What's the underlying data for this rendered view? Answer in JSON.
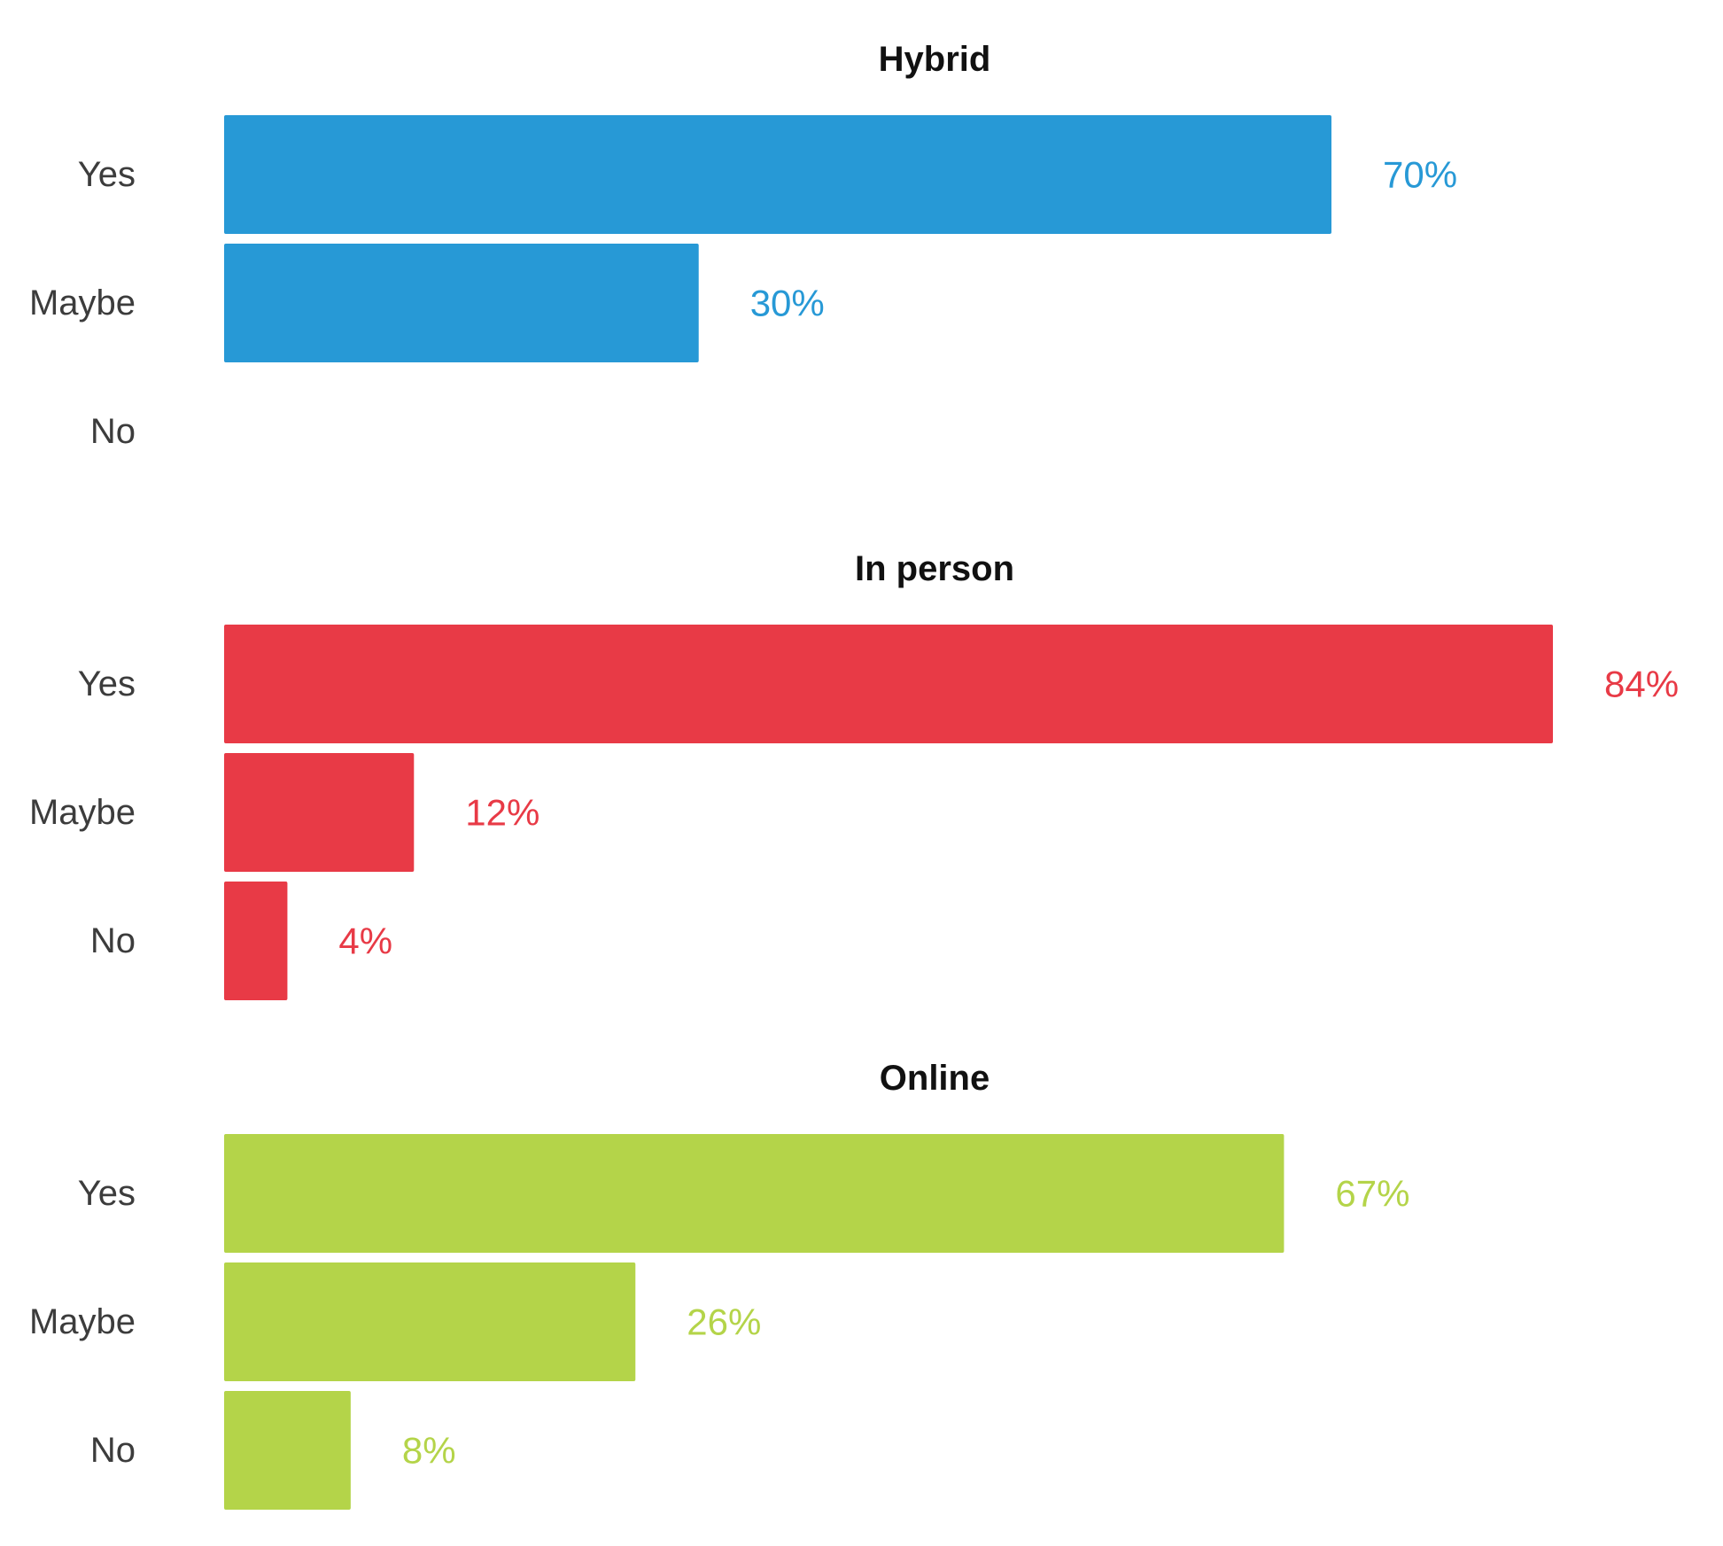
{
  "chart_data": {
    "type": "bar",
    "orientation": "horizontal",
    "grid": false,
    "legend": "none",
    "xlim": [
      0,
      100
    ],
    "categories": [
      "Yes",
      "Maybe",
      "No"
    ],
    "panels": [
      {
        "title": "Hybrid",
        "color": "#2799D6",
        "values": [
          70,
          30,
          0
        ],
        "value_labels": [
          "70%",
          "30%",
          ""
        ]
      },
      {
        "title": "In person",
        "color": "#E83A46",
        "values": [
          84,
          12,
          4
        ],
        "value_labels": [
          "84%",
          "12%",
          "4%"
        ]
      },
      {
        "title": "Online",
        "color": "#B4D449",
        "values": [
          67,
          26,
          8
        ],
        "value_labels": [
          "67%",
          "26%",
          "8%"
        ]
      }
    ]
  }
}
